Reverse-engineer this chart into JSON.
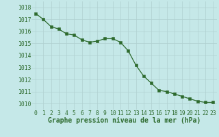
{
  "x": [
    0,
    1,
    2,
    3,
    4,
    5,
    6,
    7,
    8,
    9,
    10,
    11,
    12,
    13,
    14,
    15,
    16,
    17,
    18,
    19,
    20,
    21,
    22,
    23
  ],
  "y": [
    1017.5,
    1017.0,
    1016.4,
    1016.2,
    1015.8,
    1015.7,
    1015.3,
    1015.1,
    1015.2,
    1015.4,
    1015.4,
    1015.1,
    1014.4,
    1013.2,
    1012.3,
    1011.7,
    1011.1,
    1011.0,
    1010.8,
    1010.6,
    1010.4,
    1010.2,
    1010.1,
    1010.1
  ],
  "line_color": "#2d6a2d",
  "marker_color": "#2d6a2d",
  "bg_color": "#c5e8e8",
  "grid_color": "#b0d0d0",
  "xlabel": "Graphe pression niveau de la mer (hPa)",
  "ylim": [
    1009.5,
    1018.5
  ],
  "xlim": [
    -0.5,
    23.5
  ],
  "yticks": [
    1010,
    1011,
    1012,
    1013,
    1014,
    1015,
    1016,
    1017,
    1018
  ],
  "xticks": [
    0,
    1,
    2,
    3,
    4,
    5,
    6,
    7,
    8,
    9,
    10,
    11,
    12,
    13,
    14,
    15,
    16,
    17,
    18,
    19,
    20,
    21,
    22,
    23
  ],
  "xlabel_fontsize": 7.0,
  "tick_fontsize": 5.8,
  "linewidth": 0.9,
  "markersize": 2.5
}
